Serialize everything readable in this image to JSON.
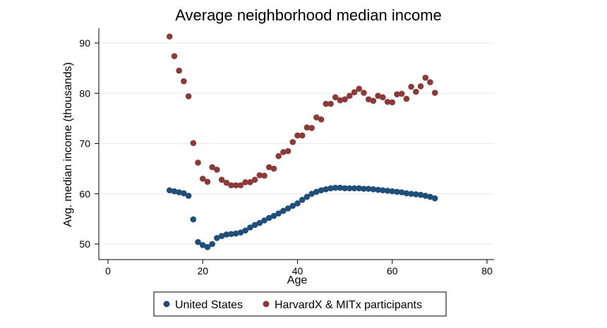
{
  "chart_data": {
    "type": "scatter",
    "title": "Average neighborhood median income",
    "xlabel": "Age",
    "ylabel": "Avg. median income (thousands)",
    "xlim": [
      0,
      80
    ],
    "ylim": [
      50,
      90
    ],
    "xticks": [
      0,
      20,
      40,
      60,
      80
    ],
    "yticks": [
      50,
      60,
      70,
      80,
      90
    ],
    "grid": "horizontal",
    "legend": "bottom",
    "x": [
      13,
      14,
      15,
      16,
      17,
      18,
      19,
      20,
      21,
      22,
      23,
      24,
      25,
      26,
      27,
      28,
      29,
      30,
      31,
      32,
      33,
      34,
      35,
      36,
      37,
      38,
      39,
      40,
      41,
      42,
      43,
      44,
      45,
      46,
      47,
      48,
      49,
      50,
      51,
      52,
      53,
      54,
      55,
      56,
      57,
      58,
      59,
      60,
      61,
      62,
      63,
      64,
      65,
      66,
      67,
      68,
      69
    ],
    "series": [
      {
        "name": "United States",
        "color": "#1f4e79",
        "values": [
          60.7,
          60.5,
          60.3,
          60.1,
          59.6,
          54.9,
          50.4,
          49.8,
          49.4,
          50.0,
          51.2,
          51.6,
          51.9,
          52.0,
          52.1,
          52.3,
          52.7,
          53.3,
          53.8,
          54.2,
          54.7,
          55.2,
          55.6,
          56.1,
          56.6,
          57.1,
          57.6,
          58.1,
          58.8,
          59.4,
          60.0,
          60.4,
          60.7,
          60.9,
          61.1,
          61.2,
          61.2,
          61.1,
          61.1,
          61.1,
          61.1,
          61.0,
          61.0,
          60.9,
          60.8,
          60.7,
          60.6,
          60.5,
          60.4,
          60.3,
          60.1,
          60.0,
          59.9,
          59.8,
          59.6,
          59.4,
          59.1
        ]
      },
      {
        "name": "HarvardX & MITx participants",
        "color": "#8b3a3a",
        "values": [
          91.3,
          87.4,
          84.5,
          82.4,
          79.4,
          70.1,
          66.2,
          63.0,
          62.4,
          65.3,
          64.8,
          62.8,
          62.2,
          61.7,
          61.7,
          61.7,
          62.3,
          62.3,
          62.8,
          63.7,
          63.6,
          65.3,
          65.0,
          67.5,
          68.3,
          68.5,
          70.3,
          71.6,
          71.6,
          73.2,
          73.1,
          75.2,
          74.8,
          77.9,
          77.9,
          79.2,
          78.6,
          78.8,
          79.5,
          80.2,
          80.9,
          80.1,
          78.8,
          78.5,
          79.5,
          79.2,
          78.3,
          78.2,
          79.8,
          79.9,
          78.9,
          81.3,
          80.3,
          81.4,
          83.1,
          82.2,
          80.1
        ]
      }
    ]
  }
}
